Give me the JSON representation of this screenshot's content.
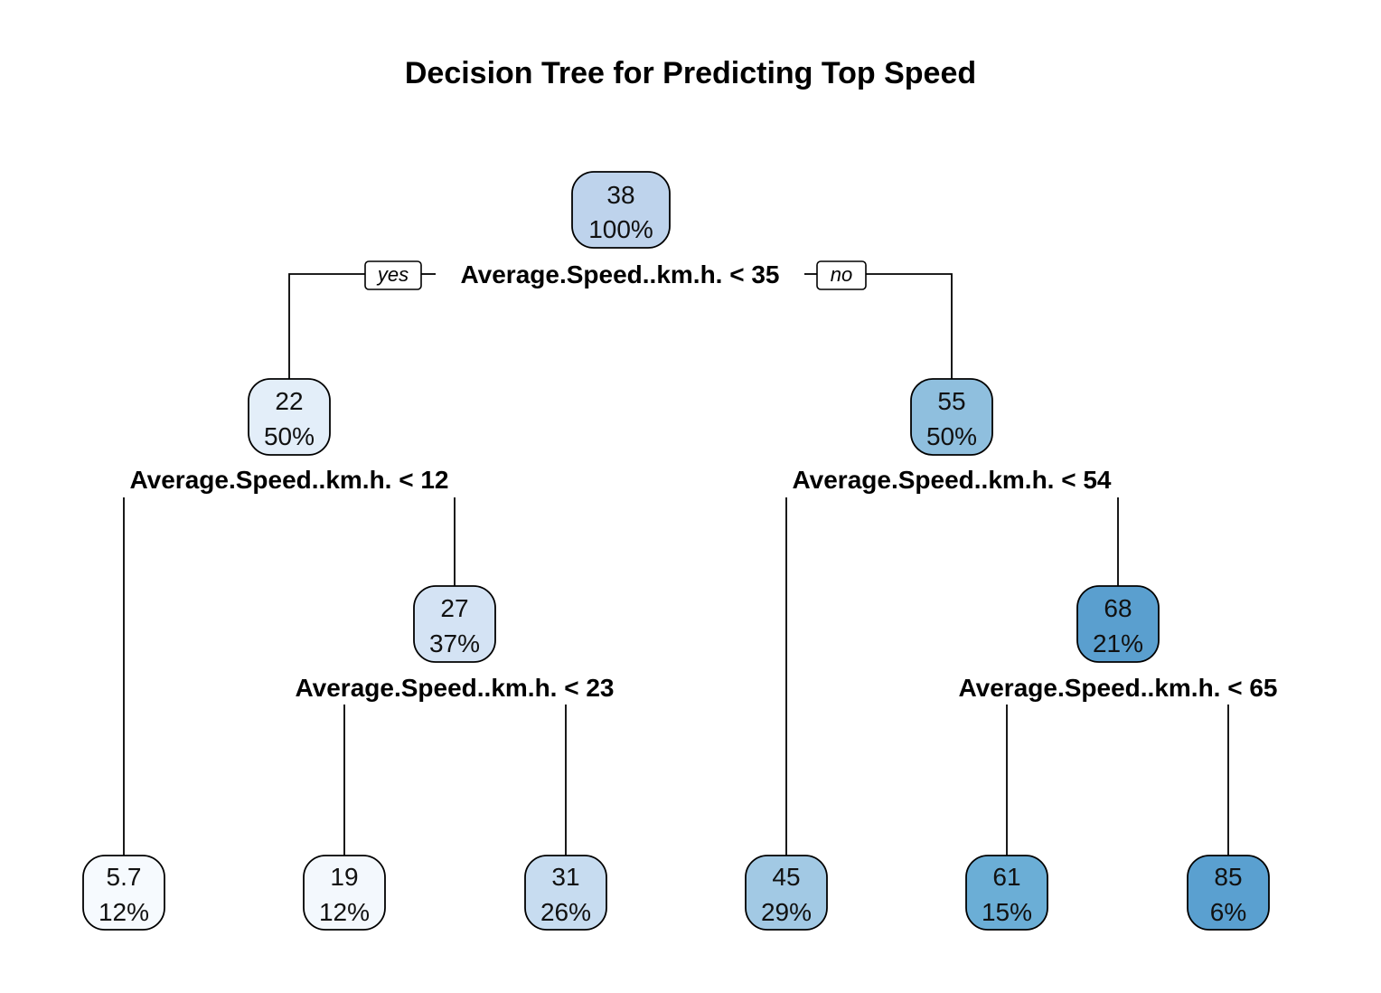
{
  "title": "Decision Tree for Predicting Top Speed",
  "branch_labels": {
    "yes": "yes",
    "no": "no"
  },
  "nodes": [
    {
      "id": "root",
      "value": "38",
      "percent": "100%",
      "color": "#bed3ec"
    },
    {
      "id": "n-left",
      "value": "22",
      "percent": "50%",
      "color": "#e3eef9"
    },
    {
      "id": "n-right",
      "value": "55",
      "percent": "50%",
      "color": "#8fbfde"
    },
    {
      "id": "n-left-right",
      "value": "27",
      "percent": "37%",
      "color": "#d4e3f4"
    },
    {
      "id": "n-right-right",
      "value": "68",
      "percent": "21%",
      "color": "#5a9fcf"
    },
    {
      "id": "leaf-1",
      "value": "5.7",
      "percent": "12%",
      "color": "#f6fafe"
    },
    {
      "id": "leaf-2",
      "value": "19",
      "percent": "12%",
      "color": "#f3f8fd"
    },
    {
      "id": "leaf-3",
      "value": "31",
      "percent": "26%",
      "color": "#c7dcf0"
    },
    {
      "id": "leaf-4",
      "value": "45",
      "percent": "29%",
      "color": "#a2c9e4"
    },
    {
      "id": "leaf-5",
      "value": "61",
      "percent": "15%",
      "color": "#6baed6"
    },
    {
      "id": "leaf-6",
      "value": "85",
      "percent": "6%",
      "color": "#5aa0d0"
    }
  ],
  "splits": [
    {
      "id": "split-root",
      "label": "Average.Speed..km.h. < 35"
    },
    {
      "id": "split-left",
      "label": "Average.Speed..km.h. < 12"
    },
    {
      "id": "split-right",
      "label": "Average.Speed..km.h. < 54"
    },
    {
      "id": "split-left-right",
      "label": "Average.Speed..km.h. < 23"
    },
    {
      "id": "split-right-right",
      "label": "Average.Speed..km.h. < 65"
    }
  ]
}
